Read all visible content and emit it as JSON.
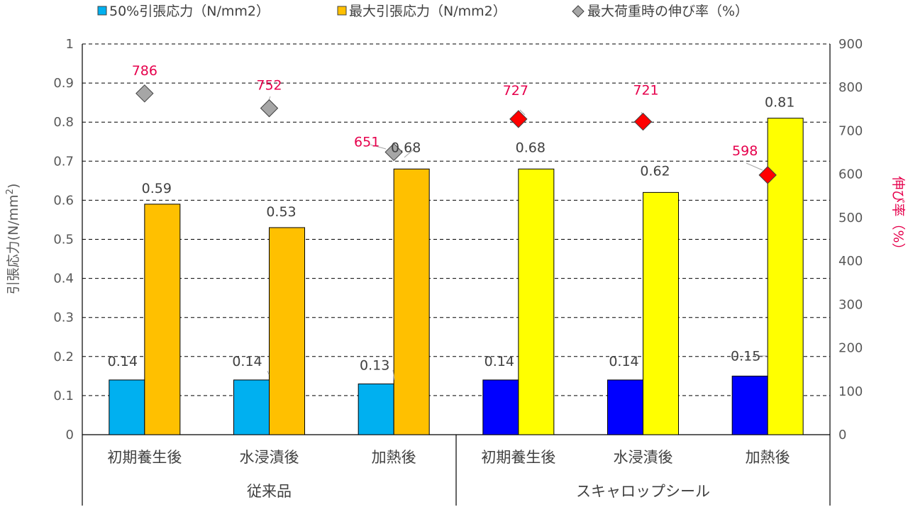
{
  "chart_data": {
    "type": "bar",
    "groups": [
      {
        "label": "従来品",
        "categories": [
          "初期養生後",
          "水浸漬後",
          "加熱後"
        ]
      },
      {
        "label": "スキャロップシール",
        "categories": [
          "初期養生後",
          "水浸漬後",
          "加熱後"
        ]
      }
    ],
    "categories": [
      "初期養生後",
      "水浸漬後",
      "加熱後",
      "初期養生後",
      "水浸漬後",
      "加熱後"
    ],
    "series": [
      {
        "name": "50%引張応力（N/mm2）",
        "kind": "bar",
        "axis": "left",
        "values": [
          0.14,
          0.14,
          0.13,
          0.14,
          0.14,
          0.15
        ],
        "labels": [
          "0.14",
          "0.14",
          "0.13",
          "0.14",
          "0.14",
          "0.15"
        ],
        "colors": [
          "#00b0f0",
          "#00b0f0",
          "#00b0f0",
          "#0000ff",
          "#0000ff",
          "#0000ff"
        ]
      },
      {
        "name": "最大引張応力（N/mm2）",
        "kind": "bar",
        "axis": "left",
        "values": [
          0.59,
          0.53,
          0.68,
          0.68,
          0.62,
          0.81
        ],
        "labels": [
          "0.59",
          "0.53",
          "0.68",
          "0.68",
          "0.62",
          "0.81"
        ],
        "colors": [
          "#ffc000",
          "#ffc000",
          "#ffc000",
          "#ffff00",
          "#ffff00",
          "#ffff00"
        ]
      },
      {
        "name": "最大荷重時の伸び率（%）",
        "kind": "marker",
        "axis": "right",
        "values": [
          786,
          752,
          651,
          727,
          721,
          598
        ],
        "labels": [
          "786",
          "752",
          "651",
          "727",
          "721",
          "598"
        ],
        "colors": [
          "#a6a6a6",
          "#a6a6a6",
          "#a6a6a6",
          "#ff0000",
          "#ff0000",
          "#ff0000"
        ]
      }
    ],
    "legend_marker_colors": [
      "#00b0f0",
      "#ffc000",
      "#a6a6a6"
    ],
    "y_left": {
      "label": "引張応力",
      "unit": "(N/mm",
      "unit_sup": "2",
      "unit_end": ")",
      "lim": [
        0,
        1
      ],
      "ticks": [
        "0",
        "0.1",
        "0.2",
        "0.3",
        "0.4",
        "0.5",
        "0.6",
        "0.7",
        "0.8",
        "0.9",
        "1"
      ]
    },
    "y_right": {
      "label": "伸び率（%）",
      "lim": [
        0,
        900
      ],
      "ticks": [
        "0",
        "100",
        "200",
        "300",
        "400",
        "500",
        "600",
        "700",
        "800",
        "900"
      ]
    },
    "grid": "dashed-horizontal",
    "legend_position": "top"
  }
}
